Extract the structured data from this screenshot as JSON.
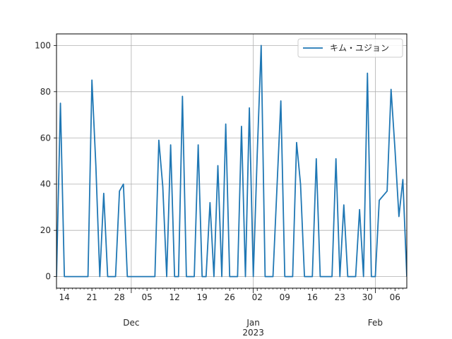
{
  "chart_data": {
    "type": "line",
    "title": "",
    "xlabel": "",
    "ylabel": "",
    "x_start": "2022-11-12",
    "x_end": "2023-02-08",
    "ylim": [
      -5,
      105
    ],
    "grid": true,
    "legend_position": "top-right",
    "series": [
      {
        "name": "キム・ユジョン",
        "color": "#1f77b4",
        "points": [
          [
            "2022-11-12",
            0
          ],
          [
            "2022-11-13",
            75
          ],
          [
            "2022-11-14",
            0
          ],
          [
            "2022-11-15",
            0
          ],
          [
            "2022-11-16",
            0
          ],
          [
            "2022-11-17",
            0
          ],
          [
            "2022-11-18",
            0
          ],
          [
            "2022-11-19",
            0
          ],
          [
            "2022-11-20",
            0
          ],
          [
            "2022-11-21",
            85
          ],
          [
            "2022-11-22",
            48
          ],
          [
            "2022-11-23",
            0
          ],
          [
            "2022-11-24",
            36
          ],
          [
            "2022-11-25",
            0
          ],
          [
            "2022-11-26",
            0
          ],
          [
            "2022-11-27",
            0
          ],
          [
            "2022-11-28",
            37
          ],
          [
            "2022-11-29",
            40
          ],
          [
            "2022-11-30",
            0
          ],
          [
            "2022-12-01",
            0
          ],
          [
            "2022-12-02",
            0
          ],
          [
            "2022-12-03",
            0
          ],
          [
            "2022-12-04",
            0
          ],
          [
            "2022-12-05",
            0
          ],
          [
            "2022-12-06",
            0
          ],
          [
            "2022-12-07",
            0
          ],
          [
            "2022-12-08",
            59
          ],
          [
            "2022-12-09",
            39
          ],
          [
            "2022-12-10",
            0
          ],
          [
            "2022-12-11",
            57
          ],
          [
            "2022-12-12",
            0
          ],
          [
            "2022-12-13",
            0
          ],
          [
            "2022-12-14",
            78
          ],
          [
            "2022-12-15",
            0
          ],
          [
            "2022-12-16",
            0
          ],
          [
            "2022-12-17",
            0
          ],
          [
            "2022-12-18",
            57
          ],
          [
            "2022-12-19",
            0
          ],
          [
            "2022-12-20",
            0
          ],
          [
            "2022-12-21",
            32
          ],
          [
            "2022-12-22",
            0
          ],
          [
            "2022-12-23",
            48
          ],
          [
            "2022-12-24",
            0
          ],
          [
            "2022-12-25",
            66
          ],
          [
            "2022-12-26",
            0
          ],
          [
            "2022-12-27",
            0
          ],
          [
            "2022-12-28",
            0
          ],
          [
            "2022-12-29",
            65
          ],
          [
            "2022-12-30",
            0
          ],
          [
            "2022-12-31",
            73
          ],
          [
            "2023-01-01",
            0
          ],
          [
            "2023-01-02",
            53
          ],
          [
            "2023-01-03",
            100
          ],
          [
            "2023-01-04",
            0
          ],
          [
            "2023-01-05",
            0
          ],
          [
            "2023-01-06",
            0
          ],
          [
            "2023-01-07",
            38
          ],
          [
            "2023-01-08",
            76
          ],
          [
            "2023-01-09",
            0
          ],
          [
            "2023-01-10",
            0
          ],
          [
            "2023-01-11",
            0
          ],
          [
            "2023-01-12",
            58
          ],
          [
            "2023-01-13",
            40
          ],
          [
            "2023-01-14",
            0
          ],
          [
            "2023-01-15",
            0
          ],
          [
            "2023-01-16",
            0
          ],
          [
            "2023-01-17",
            51
          ],
          [
            "2023-01-18",
            0
          ],
          [
            "2023-01-19",
            0
          ],
          [
            "2023-01-20",
            0
          ],
          [
            "2023-01-21",
            0
          ],
          [
            "2023-01-22",
            51
          ],
          [
            "2023-01-23",
            0
          ],
          [
            "2023-01-24",
            31
          ],
          [
            "2023-01-25",
            0
          ],
          [
            "2023-01-26",
            0
          ],
          [
            "2023-01-27",
            0
          ],
          [
            "2023-01-28",
            29
          ],
          [
            "2023-01-29",
            0
          ],
          [
            "2023-01-30",
            88
          ],
          [
            "2023-01-31",
            0
          ],
          [
            "2023-02-01",
            0
          ],
          [
            "2023-02-02",
            33
          ],
          [
            "2023-02-03",
            35
          ],
          [
            "2023-02-04",
            37
          ],
          [
            "2023-02-05",
            81
          ],
          [
            "2023-02-06",
            55
          ],
          [
            "2023-02-07",
            26
          ],
          [
            "2023-02-08",
            42
          ],
          [
            "2023-02-09",
            0
          ]
        ]
      }
    ],
    "y_ticks": [
      0,
      20,
      40,
      60,
      80,
      100
    ],
    "major_x_ticks": [
      {
        "date": "2022-12-01",
        "label": "Dec"
      },
      {
        "date": "2023-01-01",
        "label": "Jan",
        "sublabel": "2023"
      },
      {
        "date": "2023-02-01",
        "label": "Feb"
      }
    ],
    "minor_x_ticks": [
      {
        "date": "2022-11-14",
        "label": "14"
      },
      {
        "date": "2022-11-21",
        "label": "21"
      },
      {
        "date": "2022-11-28",
        "label": "28"
      },
      {
        "date": "2022-12-05",
        "label": "05"
      },
      {
        "date": "2022-12-12",
        "label": "12"
      },
      {
        "date": "2022-12-19",
        "label": "19"
      },
      {
        "date": "2022-12-26",
        "label": "26"
      },
      {
        "date": "2023-01-02",
        "label": "02"
      },
      {
        "date": "2023-01-09",
        "label": "09"
      },
      {
        "date": "2023-01-16",
        "label": "16"
      },
      {
        "date": "2023-01-23",
        "label": "23"
      },
      {
        "date": "2023-01-30",
        "label": "30"
      },
      {
        "date": "2023-02-06",
        "label": "06"
      }
    ]
  }
}
